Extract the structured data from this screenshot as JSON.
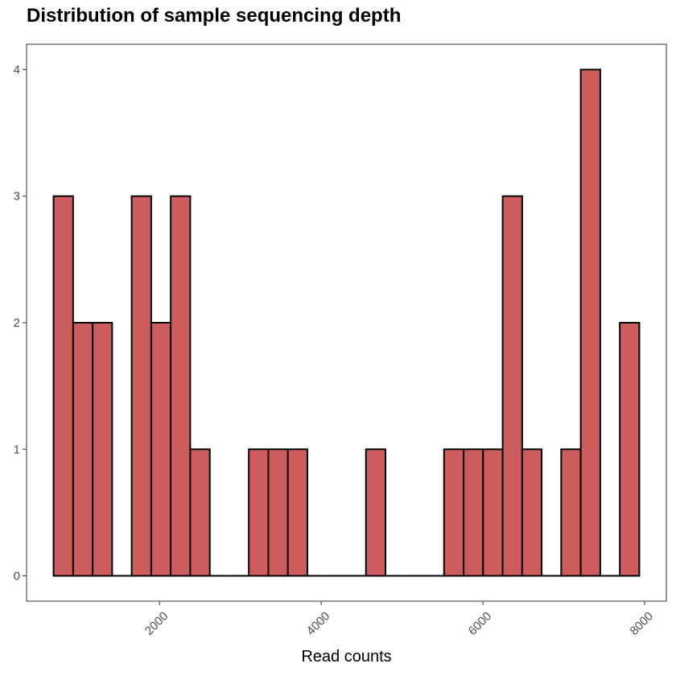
{
  "chart_data": {
    "type": "bar",
    "title": "Distribution of sample sequencing depth",
    "xlabel": "Read counts",
    "ylabel": "",
    "bin_width": 241.5,
    "bins": [
      {
        "center": 810,
        "count": 3
      },
      {
        "center": 1052,
        "count": 2
      },
      {
        "center": 1293,
        "count": 2
      },
      {
        "center": 1535,
        "count": 0
      },
      {
        "center": 1776,
        "count": 3
      },
      {
        "center": 2018,
        "count": 2
      },
      {
        "center": 2259,
        "count": 3
      },
      {
        "center": 2501,
        "count": 1
      },
      {
        "center": 2742,
        "count": 0
      },
      {
        "center": 2984,
        "count": 0
      },
      {
        "center": 3225,
        "count": 1
      },
      {
        "center": 3467,
        "count": 1
      },
      {
        "center": 3708,
        "count": 1
      },
      {
        "center": 3950,
        "count": 0
      },
      {
        "center": 4191,
        "count": 0
      },
      {
        "center": 4433,
        "count": 0
      },
      {
        "center": 4674,
        "count": 1
      },
      {
        "center": 4916,
        "count": 0
      },
      {
        "center": 5157,
        "count": 0
      },
      {
        "center": 5399,
        "count": 0
      },
      {
        "center": 5640,
        "count": 1
      },
      {
        "center": 5882,
        "count": 1
      },
      {
        "center": 6123,
        "count": 1
      },
      {
        "center": 6365,
        "count": 3
      },
      {
        "center": 6606,
        "count": 1
      },
      {
        "center": 6848,
        "count": 0
      },
      {
        "center": 7089,
        "count": 1
      },
      {
        "center": 7331,
        "count": 4
      },
      {
        "center": 7572,
        "count": 0
      },
      {
        "center": 7814,
        "count": 2
      }
    ],
    "xlim": [
      355,
      8269
    ],
    "ylim": [
      -0.2,
      4.2
    ],
    "x_ticks": [
      2000,
      4000,
      6000,
      8000
    ],
    "x_tick_labels": [
      "2000",
      "4000",
      "6000",
      "8000"
    ],
    "y_ticks": [
      0,
      1,
      2,
      3,
      4
    ],
    "y_tick_labels": [
      "0",
      "1",
      "2",
      "3",
      "4"
    ],
    "grid": false,
    "legend": "none",
    "colors": {
      "fill": "#cd5c5c",
      "outline": "#000000",
      "panel_border": "#333333",
      "tick": "#333333",
      "tick_label": "#4d4d4d"
    }
  }
}
